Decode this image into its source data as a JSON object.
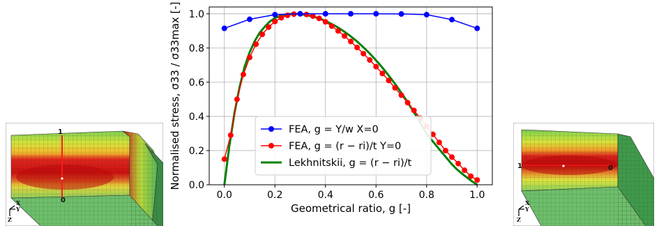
{
  "left_model": {
    "marker_top": "1",
    "marker_bottom": "0",
    "triad": {
      "x": "X",
      "y": "Y",
      "z": "Z"
    }
  },
  "right_model": {
    "marker_left": "1",
    "marker_right": "0",
    "triad": {
      "x": "X",
      "y": "Y",
      "z": "Z"
    }
  },
  "colors": {
    "fea_x0": "#0000ff",
    "fea_y0": "#ff0000",
    "lekhnitskii": "#008000"
  },
  "chart_data": {
    "type": "line",
    "xlabel": "Geometrical ratio, g [-]",
    "ylabel": "Normalised stress, σ33 / σ33max [-]",
    "xlim": [
      -0.06,
      1.06
    ],
    "ylim": [
      0.0,
      1.04
    ],
    "xticks": [
      "0.0",
      "0.2",
      "0.4",
      "0.6",
      "0.8",
      "1.0"
    ],
    "yticks": [
      "0.0",
      "0.2",
      "0.4",
      "0.6",
      "0.8",
      "1.0"
    ],
    "grid": true,
    "legend_placement": "lower-center",
    "series": [
      {
        "name": "FEA, g = Y/w X=0",
        "marker": "circle",
        "x": [
          0.0,
          0.1,
          0.2,
          0.3,
          0.4,
          0.5,
          0.6,
          0.7,
          0.8,
          0.9,
          1.0
        ],
        "y": [
          0.915,
          0.968,
          0.995,
          1.0,
          1.0,
          1.0,
          1.0,
          0.999,
          0.995,
          0.966,
          0.915
        ]
      },
      {
        "name": "FEA, g = (r − ri)/t Y=0",
        "marker": "circle",
        "x": [
          0.0,
          0.025,
          0.05,
          0.075,
          0.1,
          0.125,
          0.15,
          0.175,
          0.2,
          0.225,
          0.25,
          0.275,
          0.3,
          0.325,
          0.35,
          0.375,
          0.4,
          0.425,
          0.45,
          0.475,
          0.5,
          0.525,
          0.55,
          0.575,
          0.6,
          0.625,
          0.65,
          0.675,
          0.7,
          0.725,
          0.75,
          0.775,
          0.8,
          0.825,
          0.85,
          0.875,
          0.9,
          0.925,
          0.95,
          0.975,
          1.0
        ],
        "y": [
          0.15,
          0.29,
          0.5,
          0.645,
          0.745,
          0.822,
          0.88,
          0.922,
          0.955,
          0.977,
          0.991,
          0.998,
          1.0,
          0.996,
          0.987,
          0.973,
          0.953,
          0.928,
          0.9,
          0.87,
          0.838,
          0.803,
          0.767,
          0.73,
          0.691,
          0.651,
          0.61,
          0.567,
          0.524,
          0.48,
          0.435,
          0.389,
          0.342,
          0.295,
          0.248,
          0.2,
          0.162,
          0.124,
          0.085,
          0.05,
          0.028
        ]
      },
      {
        "name": "Lekhnitskii, g = (r − ri)/t",
        "marker": "none",
        "x": [
          0.0,
          0.02,
          0.04,
          0.06,
          0.08,
          0.1,
          0.12,
          0.14,
          0.16,
          0.18,
          0.2,
          0.22,
          0.24,
          0.26,
          0.28,
          0.3,
          0.32,
          0.34,
          0.36,
          0.38,
          0.4,
          0.42,
          0.44,
          0.46,
          0.48,
          0.5,
          0.52,
          0.54,
          0.56,
          0.58,
          0.6,
          0.62,
          0.64,
          0.66,
          0.68,
          0.7,
          0.72,
          0.74,
          0.76,
          0.78,
          0.8,
          0.82,
          0.84,
          0.86,
          0.88,
          0.9,
          0.92,
          0.94,
          0.96,
          0.98,
          1.0
        ],
        "y": [
          0.0,
          0.23,
          0.42,
          0.57,
          0.69,
          0.775,
          0.84,
          0.89,
          0.925,
          0.955,
          0.975,
          0.988,
          0.995,
          0.999,
          1.0,
          0.998,
          0.994,
          0.988,
          0.98,
          0.97,
          0.958,
          0.944,
          0.928,
          0.91,
          0.89,
          0.868,
          0.844,
          0.818,
          0.79,
          0.76,
          0.728,
          0.694,
          0.658,
          0.62,
          0.58,
          0.538,
          0.494,
          0.448,
          0.4,
          0.35,
          0.298,
          0.262,
          0.226,
          0.19,
          0.155,
          0.12,
          0.09,
          0.065,
          0.042,
          0.02,
          0.0
        ]
      }
    ]
  }
}
